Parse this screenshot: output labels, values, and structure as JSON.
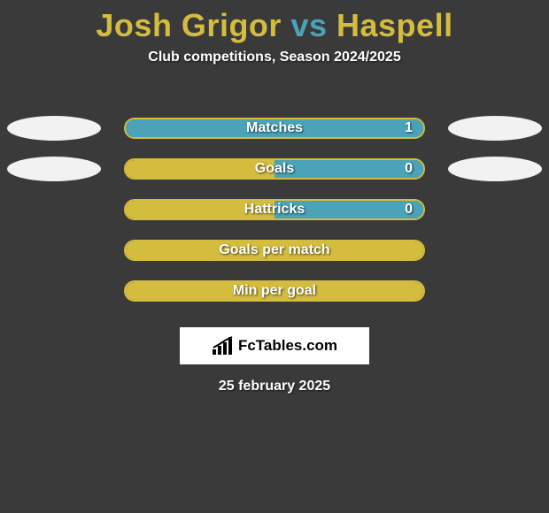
{
  "title": {
    "player1": "Josh Grigor",
    "vs": "vs",
    "player2": "Haspell",
    "player1_color": "#d4bc3e",
    "vs_color": "#4aa3b8",
    "player2_color": "#d4bc3e",
    "fontsize": 36
  },
  "subtitle": "Club competitions, Season 2024/2025",
  "background_color": "#3a3a3a",
  "bar_left_color": "#d4bc3e",
  "bar_right_color": "#4aa3b8",
  "bar_border_color": "#d4bc3e",
  "ellipse_left_color": "#f2f2f2",
  "ellipse_right_color": "#f2f2f2",
  "stats": [
    {
      "label": "Matches",
      "left_value": "",
      "right_value": "1",
      "left_pct": 0,
      "right_pct": 100,
      "show_left_ellipse": true,
      "show_right_ellipse": true
    },
    {
      "label": "Goals",
      "left_value": "",
      "right_value": "0",
      "left_pct": 50,
      "right_pct": 50,
      "show_left_ellipse": true,
      "show_right_ellipse": true
    },
    {
      "label": "Hattricks",
      "left_value": "",
      "right_value": "0",
      "left_pct": 50,
      "right_pct": 50,
      "show_left_ellipse": false,
      "show_right_ellipse": false
    },
    {
      "label": "Goals per match",
      "left_value": "",
      "right_value": "",
      "left_pct": 100,
      "right_pct": 0,
      "show_left_ellipse": false,
      "show_right_ellipse": false
    },
    {
      "label": "Min per goal",
      "left_value": "",
      "right_value": "",
      "left_pct": 100,
      "right_pct": 0,
      "show_left_ellipse": false,
      "show_right_ellipse": false
    }
  ],
  "brand": "FcTables.com",
  "date": "25 february 2025"
}
